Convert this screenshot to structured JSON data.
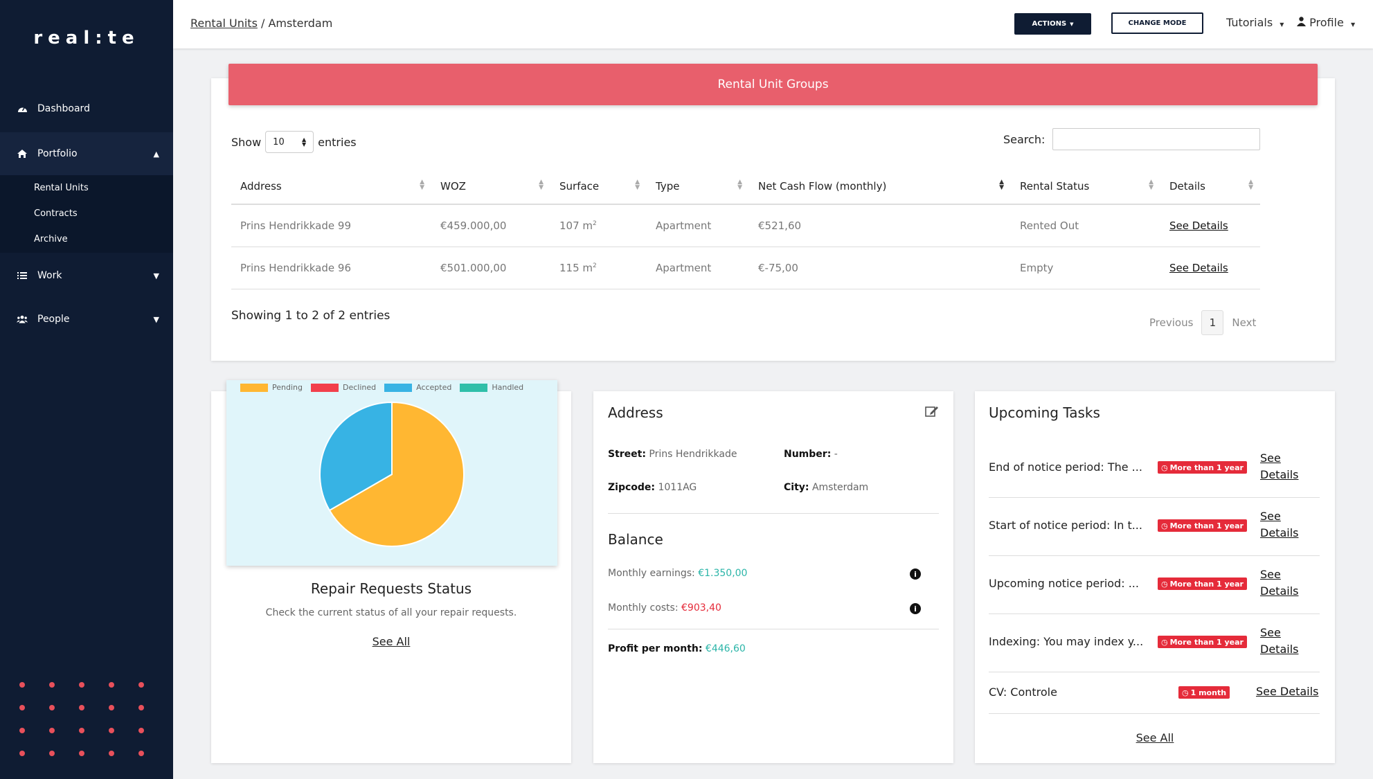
{
  "sidebar": {
    "logo": "real:te",
    "items": [
      {
        "label": "Dashboard",
        "icon": "dashboard-icon"
      },
      {
        "label": "Portfolio",
        "icon": "home-icon",
        "expanded": true
      },
      {
        "label": "Work",
        "icon": "list-icon"
      },
      {
        "label": "People",
        "icon": "users-icon"
      }
    ],
    "portfolio_sub": [
      "Rental Units",
      "Contracts",
      "Archive"
    ]
  },
  "header": {
    "breadcrumb_link": "Rental Units",
    "breadcrumb_sep": "/",
    "breadcrumb_current": "Amsterdam",
    "actions_label": "ACTIONS",
    "change_mode_label": "CHANGE MODE",
    "tutorials_label": "Tutorials",
    "profile_label": "Profile"
  },
  "groups": {
    "banner": "Rental Unit Groups",
    "show_label": "Show",
    "entries_label": "entries",
    "page_size": "10",
    "search_label": "Search:",
    "columns": [
      "Address",
      "WOZ",
      "Surface",
      "Type",
      "Net Cash Flow (monthly)",
      "Rental Status",
      "Details"
    ],
    "rows": [
      {
        "address": "Prins Hendrikkade 99",
        "woz": "€459.000,00",
        "surface": "107 m",
        "type": "Apartment",
        "cashflow": "€521,60",
        "status": "Rented Out",
        "details": "See Details"
      },
      {
        "address": "Prins Hendrikkade 96",
        "woz": "€501.000,00",
        "surface": "115 m",
        "type": "Apartment",
        "cashflow": "€-75,00",
        "status": "Empty",
        "details": "See Details"
      }
    ],
    "surface_sup": "2",
    "showing": "Showing 1 to 2 of 2 entries",
    "prev": "Previous",
    "page": "1",
    "next": "Next"
  },
  "repair": {
    "title": "Repair Requests Status",
    "subtitle": "Check the current status of all your repair requests.",
    "link": "See All"
  },
  "chart_data": {
    "type": "pie",
    "categories": [
      "Pending",
      "Declined",
      "Accepted",
      "Handled"
    ],
    "values": [
      2,
      0,
      1,
      0
    ],
    "colors": [
      "#ffb732",
      "#f2404c",
      "#37b3e4",
      "#2fbfa9"
    ]
  },
  "address": {
    "title": "Address",
    "street_label": "Street:",
    "street": "Prins Hendrikkade",
    "number_label": "Number:",
    "number": "-",
    "zipcode_label": "Zipcode:",
    "zipcode": "1011AG",
    "city_label": "City:",
    "city": "Amsterdam",
    "balance_title": "Balance",
    "earnings_label": "Monthly earnings:",
    "earnings": "€1.350,00",
    "costs_label": "Monthly costs:",
    "costs": "€903,40",
    "profit_label": "Profit per month:",
    "profit": "€446,60"
  },
  "tasks": {
    "title": "Upcoming Tasks",
    "items": [
      {
        "title": "End of notice period: The ...",
        "badge": "More than 1 year",
        "link1": "See",
        "link2": "Details"
      },
      {
        "title": "Start of notice period: In t...",
        "badge": "More than 1 year",
        "link1": "See",
        "link2": "Details"
      },
      {
        "title": "Upcoming notice period: ...",
        "badge": "More than 1 year",
        "link1": "See",
        "link2": "Details"
      },
      {
        "title": "Indexing: You may index y...",
        "badge": "More than 1 year",
        "link1": "See",
        "link2": "Details"
      },
      {
        "title": "CV: Controle",
        "badge": "1 month",
        "link1": "See Details",
        "link2": ""
      }
    ],
    "see_all": "See All"
  }
}
